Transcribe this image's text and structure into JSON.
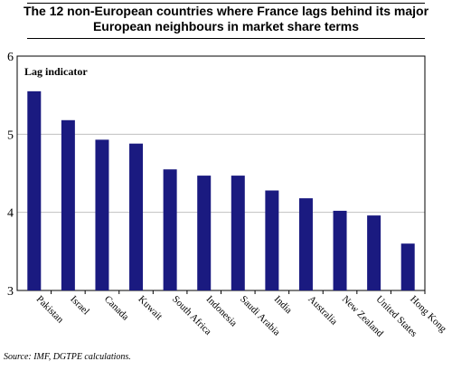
{
  "title_line1": "The 12 non-European countries where France lags behind its major",
  "title_line2": "European neighbours in market share terms",
  "source": "Source: IMF, DGTPE calculations.",
  "colors": {
    "bar": "#1a1a80",
    "grid": "#c0c0c0",
    "axis": "#000000"
  },
  "chart_data": {
    "type": "bar",
    "title": "The 12 non-European countries where France lags behind its major European neighbours in market share terms",
    "annotation": "Lag indicator",
    "categories": [
      "Pakistan",
      "Israel",
      "Canada",
      "Kuwait",
      "South Africa",
      "Indonesia",
      "Saudi Arabia",
      "India",
      "Australia",
      "New Zealand",
      "United States",
      "Hong Kong"
    ],
    "values": [
      5.55,
      5.18,
      4.93,
      4.88,
      4.55,
      4.47,
      4.47,
      4.28,
      4.18,
      4.02,
      3.96,
      3.6
    ],
    "ylim": [
      3,
      6
    ],
    "yticks": [
      3,
      4,
      5,
      6
    ],
    "xlabel": "",
    "ylabel": "",
    "grid": true
  }
}
